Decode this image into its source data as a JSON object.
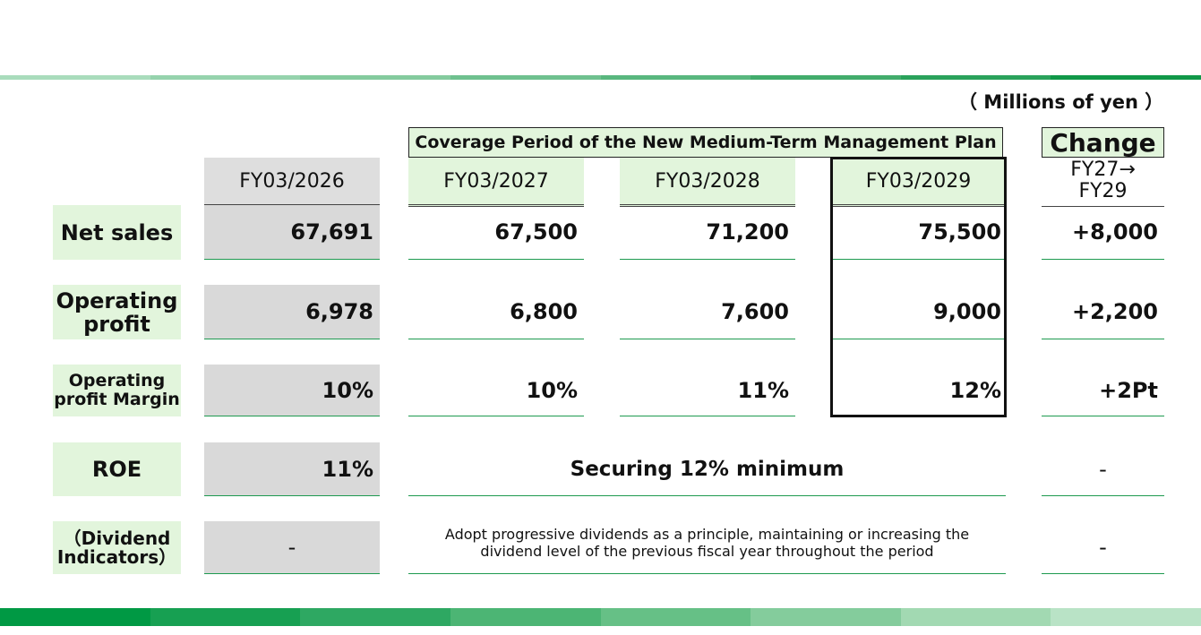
{
  "units": "（ Millions of yen ）",
  "coverage_label": "Coverage Period of the New Medium-Term Management Plan",
  "change_label": "Change",
  "change_sub": [
    "FY27→",
    "FY29"
  ],
  "columns": [
    "FY03/2026",
    "FY03/2027",
    "FY03/2028",
    "FY03/2029"
  ],
  "rows": [
    {
      "label": [
        "Net sales"
      ],
      "values": [
        "67,691",
        "67,500",
        "71,200",
        "75,500"
      ],
      "change": "+8,000"
    },
    {
      "label": [
        "Operating",
        "profit"
      ],
      "values": [
        "6,978",
        "6,800",
        "7,600",
        "9,000"
      ],
      "change": "+2,200"
    },
    {
      "label": [
        "Operating",
        "profit Margin"
      ],
      "values": [
        "10%",
        "10%",
        "11%",
        "12%"
      ],
      "change": "+2Pt"
    },
    {
      "label": [
        "ROE"
      ],
      "values": [
        "11%"
      ],
      "merged": "Securing 12% minimum",
      "change": "-"
    },
    {
      "label": [
        "（Dividend",
        "Indicators）"
      ],
      "values": [
        "-"
      ],
      "merged": [
        "Adopt progressive dividends as a principle, maintaining or increasing the",
        "dividend level of the previous fiscal year throughout the period"
      ],
      "change": "-"
    }
  ],
  "colors": {
    "stripe": [
      "#009944",
      "#17a052",
      "#2ea862",
      "#4cb574",
      "#66c086",
      "#84cc9c",
      "#a2d9b2",
      "#b9e3c6"
    ],
    "label_bg": "#e2f5dc",
    "grey_bg": "#d9d9d9",
    "rule": "#1e9a50"
  }
}
